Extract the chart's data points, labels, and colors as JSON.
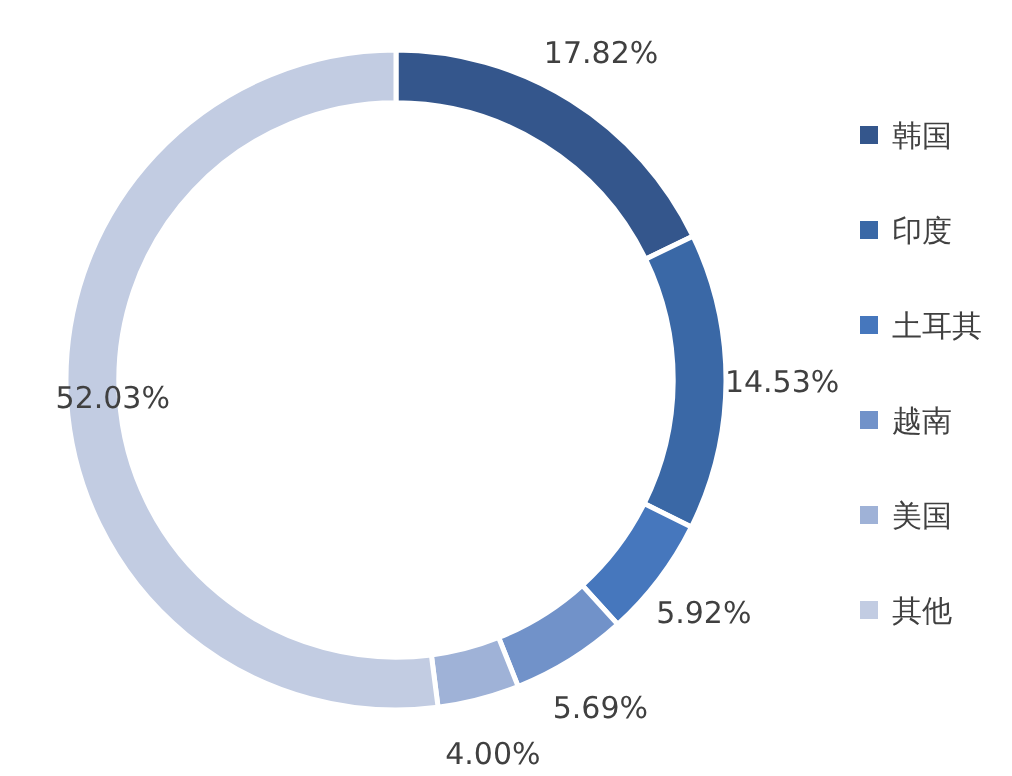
{
  "chart_data": {
    "type": "donut",
    "categories": [
      "韩国",
      "印度",
      "土耳其",
      "越南",
      "美国",
      "其他"
    ],
    "values": [
      17.82,
      14.53,
      5.92,
      5.69,
      4.0,
      52.03
    ],
    "value_labels": [
      "17.82%",
      "14.53%",
      "5.92%",
      "5.69%",
      "4.00%",
      "52.03%"
    ],
    "colors": [
      "#34568c",
      "#3a68a6",
      "#4677bd",
      "#7192c9",
      "#9fb2d7",
      "#c2cce2"
    ],
    "legend": "right"
  }
}
